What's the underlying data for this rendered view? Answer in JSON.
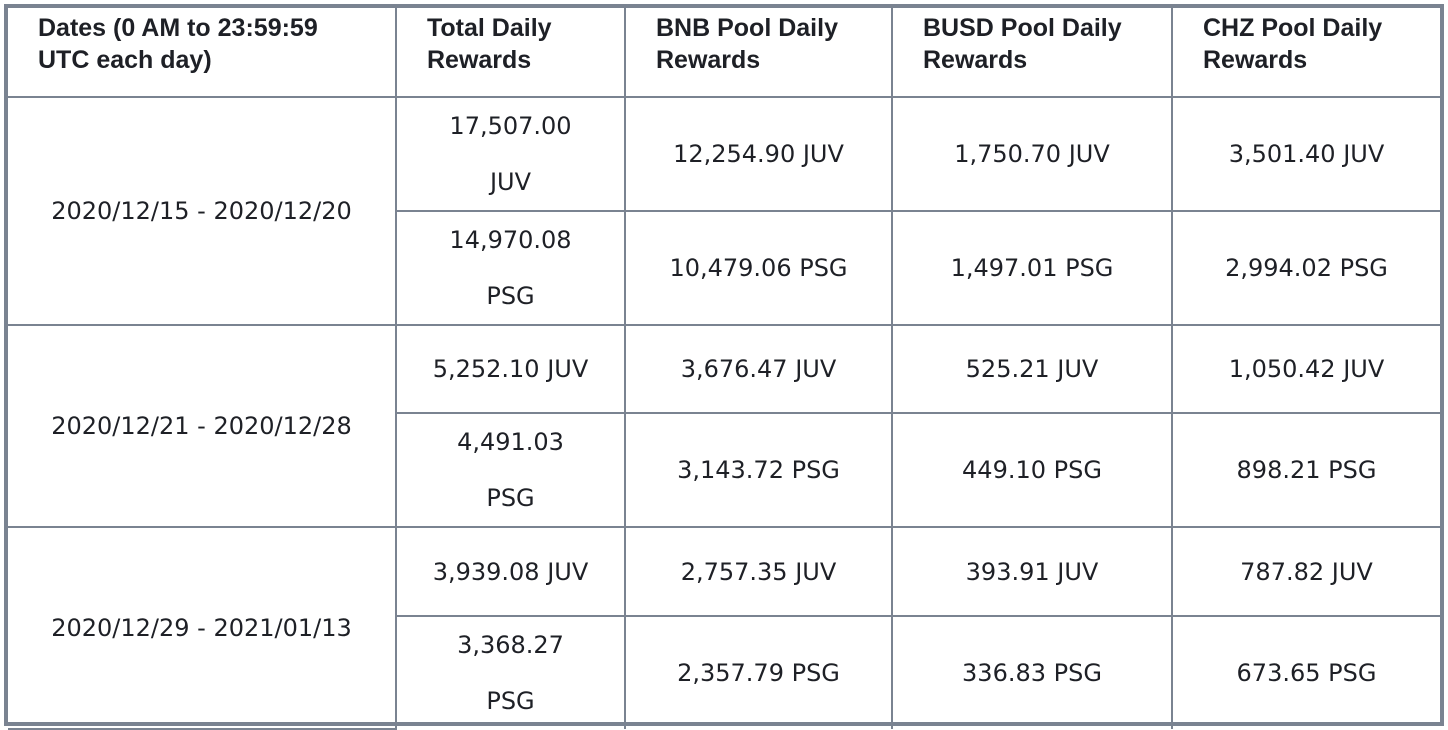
{
  "table": {
    "headers": [
      "Dates (0 AM to 23:59:59 UTC each day)",
      "Total Daily Rewards",
      "BNB Pool Daily Rewards",
      "BUSD Pool Daily Rewards",
      "CHZ Pool Daily Rewards"
    ],
    "periods": [
      {
        "dates": "2020/12/15 - 2020/12/20",
        "rows": [
          {
            "total": "17,507.00 JUV",
            "bnb": "12,254.90 JUV",
            "busd": "1,750.70 JUV",
            "chz": "3,501.40 JUV"
          },
          {
            "total": "14,970.08 PSG",
            "bnb": "10,479.06 PSG",
            "busd": "1,497.01 PSG",
            "chz": "2,994.02 PSG"
          }
        ]
      },
      {
        "dates": "2020/12/21 - 2020/12/28",
        "rows": [
          {
            "total": "5,252.10 JUV",
            "bnb": "3,676.47 JUV",
            "busd": "525.21 JUV",
            "chz": "1,050.42 JUV"
          },
          {
            "total": "4,491.03 PSG",
            "bnb": "3,143.72 PSG",
            "busd": "449.10 PSG",
            "chz": "898.21 PSG"
          }
        ]
      },
      {
        "dates": "2020/12/29 - 2021/01/13",
        "rows": [
          {
            "total": "3,939.08 JUV",
            "bnb": "2,757.35 JUV",
            "busd": "393.91 JUV",
            "chz": "787.82 JUV"
          },
          {
            "total": "3,368.27 PSG",
            "bnb": "2,357.79 PSG",
            "busd": "336.83 PSG",
            "chz": "673.65 PSG"
          }
        ]
      }
    ]
  },
  "colors": {
    "border": "#7a8391",
    "text": "#1e2026",
    "background": "#ffffff"
  }
}
